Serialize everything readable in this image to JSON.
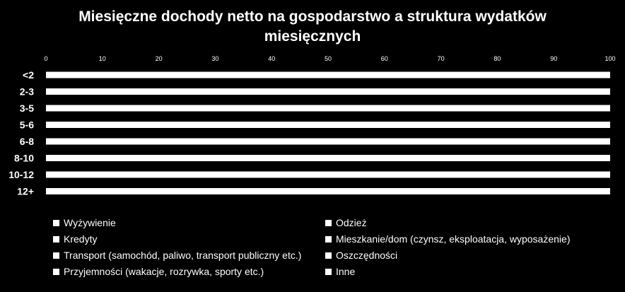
{
  "chart_data": {
    "type": "bar",
    "orientation": "horizontal",
    "stacked": true,
    "title": "Miesięczne dochody netto na gospodarstwo a struktura wydatków miesięcznych",
    "categories": [
      "<2",
      "2-3",
      "3-5",
      "5-6",
      "6-8",
      "8-10",
      "10-12",
      "12+"
    ],
    "xlim": [
      0,
      100
    ],
    "xticks": [
      0,
      10,
      20,
      30,
      40,
      50,
      60,
      70,
      80,
      90,
      100
    ],
    "series": [
      {
        "name": "Wyżywienie",
        "values": [
          null,
          null,
          null,
          null,
          null,
          null,
          null,
          null
        ]
      },
      {
        "name": "Odzież",
        "values": [
          null,
          null,
          null,
          null,
          null,
          null,
          null,
          null
        ]
      },
      {
        "name": "Kredyty",
        "values": [
          null,
          null,
          null,
          null,
          null,
          null,
          null,
          null
        ]
      },
      {
        "name": "Mieszkanie/dom (czynsz, eksploatacja, wyposażenie)",
        "values": [
          null,
          null,
          null,
          null,
          null,
          null,
          null,
          null
        ]
      },
      {
        "name": "Transport (samochód, paliwo, transport publiczny etc.)",
        "values": [
          null,
          null,
          null,
          null,
          null,
          null,
          null,
          null
        ]
      },
      {
        "name": "Oszczędności",
        "values": [
          null,
          null,
          null,
          null,
          null,
          null,
          null,
          null
        ]
      },
      {
        "name": "Przyjemności (wakacje, rozrywka, sporty etc.)",
        "values": [
          null,
          null,
          null,
          null,
          null,
          null,
          null,
          null
        ]
      },
      {
        "name": "Inne",
        "values": [
          null,
          null,
          null,
          null,
          null,
          null,
          null,
          null
        ]
      }
    ],
    "totals": [
      100,
      100,
      100,
      100,
      100,
      100,
      100,
      100
    ],
    "legend_position": "bottom",
    "grid": false,
    "colors": {
      "background": "#000000",
      "bar": "#ffffff",
      "text": "#ffffff"
    }
  }
}
